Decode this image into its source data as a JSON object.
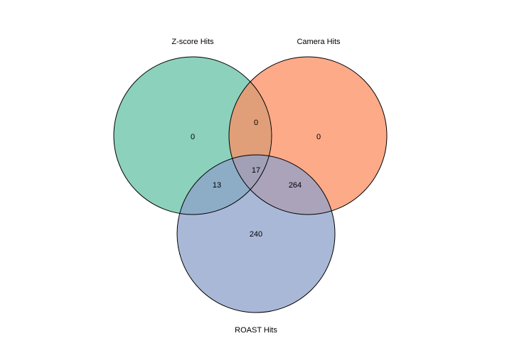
{
  "diagram": {
    "type": "venn-3",
    "sets": [
      {
        "key": "zscore",
        "label": "Z-score Hits",
        "color": "#66c2a5"
      },
      {
        "key": "camera",
        "label": "Camera Hits",
        "color": "#fc8d62"
      },
      {
        "key": "roast",
        "label": "ROAST Hits",
        "color": "#8da0cb"
      }
    ],
    "regions": {
      "zscore_only": "0",
      "camera_only": "0",
      "roast_only": "240",
      "zscore_camera": "0",
      "zscore_roast": "13",
      "camera_roast": "264",
      "all_three": "17"
    }
  }
}
